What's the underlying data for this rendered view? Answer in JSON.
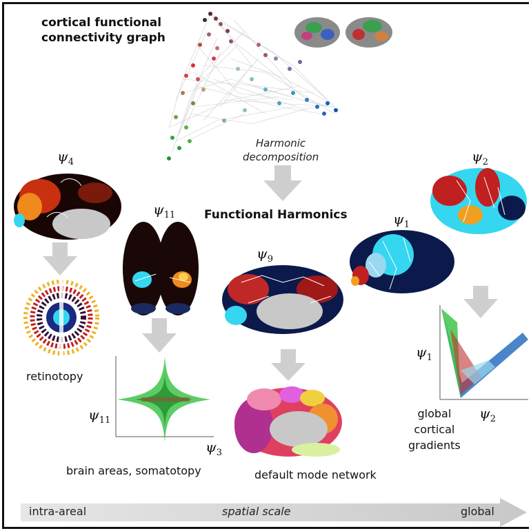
{
  "title_line1": "cortical functional",
  "title_line2": "connectivity graph",
  "harmonic_line1": "Harmonic",
  "harmonic_line2": "decomposition",
  "functional_harmonics": "Functional Harmonics",
  "psi": {
    "psi4": {
      "sym": "ψ",
      "sub": "4"
    },
    "psi11": {
      "sym": "ψ",
      "sub": "11"
    },
    "psi9": {
      "sym": "ψ",
      "sub": "9"
    },
    "psi1": {
      "sym": "ψ",
      "sub": "1"
    },
    "psi2": {
      "sym": "ψ",
      "sub": "2"
    },
    "axis_psi11": {
      "sym": "ψ",
      "sub": "11"
    },
    "axis_psi3": {
      "sym": "ψ",
      "sub": "3"
    },
    "axis_psi1": {
      "sym": "ψ",
      "sub": "1"
    },
    "axis_psi2": {
      "sym": "ψ",
      "sub": "2"
    }
  },
  "labels": {
    "retinotopy": "retinotopy",
    "brain_areas": "brain areas, somatotopy",
    "default_mode": "default mode network",
    "global_gradients_1": "global",
    "global_gradients_2": "cortical",
    "global_gradients_3": "gradients"
  },
  "scale_bar": {
    "left": "intra-areal",
    "middle": "spatial scale",
    "right": "global"
  },
  "colors": {
    "arrow_gray": "#cfcfcf",
    "brain_dark": "#0b1a4a",
    "cyan": "#35d6f0",
    "hot": "#f08a1c",
    "scatter_green": "#3fc44a"
  }
}
